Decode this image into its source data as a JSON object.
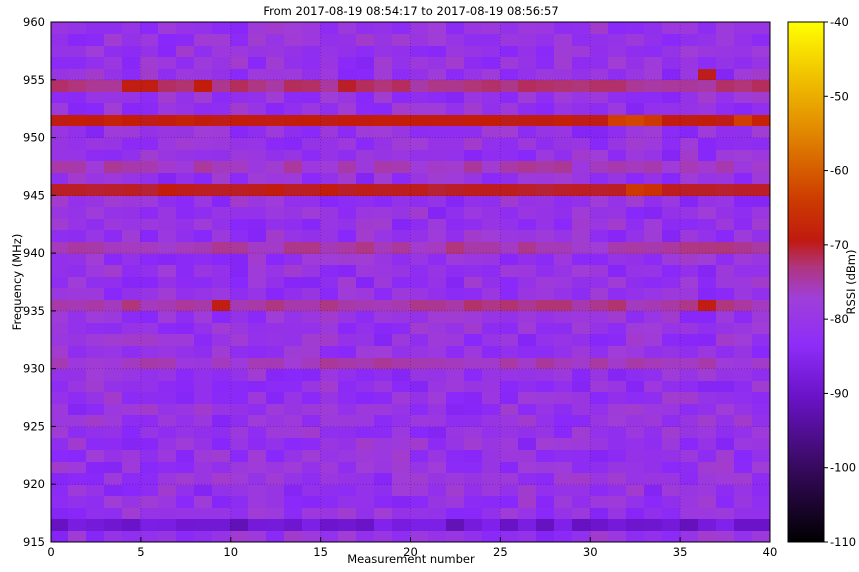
{
  "chart_data": {
    "type": "heatmap",
    "title": "From 2017-08-19 08:54:17 to 2017-08-19 08:56:57",
    "xlabel": "Measurement number",
    "ylabel": "Frequency (MHz)",
    "xlim": [
      0,
      40
    ],
    "ylim": [
      915,
      960
    ],
    "x_ticks": [
      "0",
      "5",
      "10",
      "15",
      "20",
      "25",
      "30",
      "35",
      "40"
    ],
    "y_ticks": [
      "915",
      "920",
      "925",
      "930",
      "935",
      "940",
      "945",
      "950",
      "955",
      "960"
    ],
    "colorbar": {
      "label": "RSSI (dBm)",
      "min": -110,
      "max": -40,
      "ticks": [
        "-40",
        "-50",
        "-60",
        "-70",
        "-80",
        "-90",
        "-100",
        "-110"
      ],
      "colormap": "gnuplot"
    },
    "base_rssi_dbm": -89,
    "columns": 40,
    "rows": 45,
    "bands": [
      {
        "freq_mhz": 951.5,
        "rssi_dbm": -73
      },
      {
        "freq_mhz": 945.5,
        "rssi_dbm": -77
      },
      {
        "freq_mhz": 954.5,
        "rssi_dbm": -83
      },
      {
        "freq_mhz": 935.5,
        "rssi_dbm": -84
      },
      {
        "freq_mhz": 940.5,
        "rssi_dbm": -85
      },
      {
        "freq_mhz": 930.5,
        "rssi_dbm": -86
      },
      {
        "freq_mhz": 947.5,
        "rssi_dbm": -86
      },
      {
        "freq_mhz": 916.5,
        "rssi_dbm": -94
      }
    ],
    "hot_cells": [
      {
        "x": 4,
        "freq_mhz": 954.5,
        "rssi_dbm": -74
      },
      {
        "x": 5,
        "freq_mhz": 954.5,
        "rssi_dbm": -74
      },
      {
        "x": 8,
        "freq_mhz": 954.5,
        "rssi_dbm": -73
      },
      {
        "x": 16,
        "freq_mhz": 954.5,
        "rssi_dbm": -78
      },
      {
        "x": 36,
        "freq_mhz": 955.5,
        "rssi_dbm": -76
      },
      {
        "x": 9,
        "freq_mhz": 935.5,
        "rssi_dbm": -74
      },
      {
        "x": 36,
        "freq_mhz": 935.5,
        "rssi_dbm": -74
      },
      {
        "x": 32,
        "freq_mhz": 945.5,
        "rssi_dbm": -68
      },
      {
        "x": 33,
        "freq_mhz": 945.5,
        "rssi_dbm": -69
      },
      {
        "x": 6,
        "freq_mhz": 945.5,
        "rssi_dbm": -73
      },
      {
        "x": 12,
        "freq_mhz": 945.5,
        "rssi_dbm": -73
      },
      {
        "x": 15,
        "freq_mhz": 945.5,
        "rssi_dbm": -73
      },
      {
        "x": 31,
        "freq_mhz": 951.5,
        "rssi_dbm": -67
      },
      {
        "x": 32,
        "freq_mhz": 951.5,
        "rssi_dbm": -66
      },
      {
        "x": 33,
        "freq_mhz": 951.5,
        "rssi_dbm": -68
      },
      {
        "x": 38,
        "freq_mhz": 951.5,
        "rssi_dbm": -67
      }
    ]
  }
}
